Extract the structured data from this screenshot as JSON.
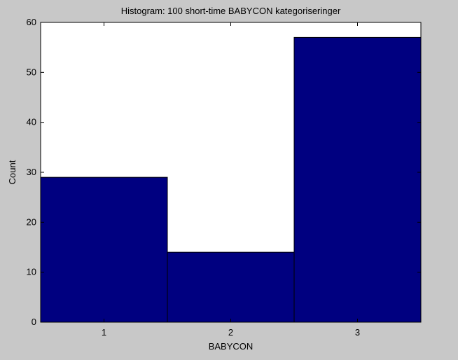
{
  "chart_data": {
    "type": "bar",
    "title": "Histogram: 100 short-time BABYCON kategoriseringer",
    "xlabel": "BABYCON",
    "ylabel": "Count",
    "categories": [
      "1",
      "2",
      "3"
    ],
    "values": [
      29,
      14,
      57
    ],
    "xlim": [
      0.5,
      3.5
    ],
    "ylim": [
      0,
      60
    ],
    "yticks": [
      "0",
      "10",
      "20",
      "30",
      "40",
      "50",
      "60"
    ],
    "xticks": [
      "1",
      "2",
      "3"
    ],
    "grid": false,
    "legend": "none",
    "colors": {
      "bar_fill": "#000080",
      "bar_edge": "#000000",
      "axes_background": "#ffffff",
      "figure_background": "#c8c8c8"
    }
  }
}
